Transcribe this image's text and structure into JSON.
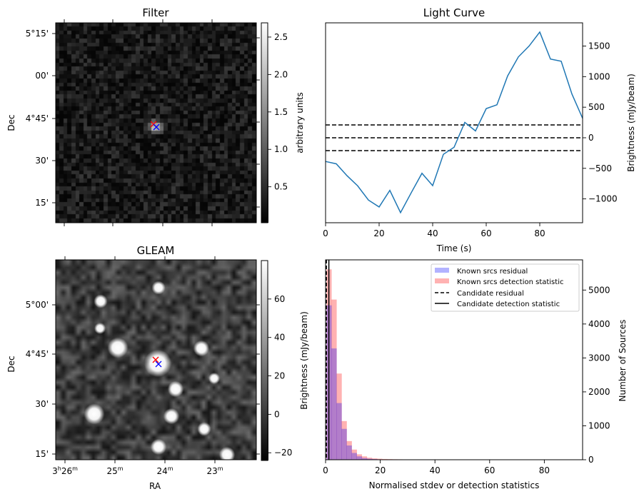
{
  "chart_data": [
    {
      "type": "heatmap",
      "title": "Filter",
      "ylabel": "Dec",
      "yticks": [
        "5°15'",
        "00'",
        "4°45'",
        "30'",
        "15'"
      ],
      "colorbar": {
        "label": "arbitrary units",
        "ticks": [
          "0.5",
          "1.0",
          "1.5",
          "2.0",
          "2.5"
        ],
        "range": [
          0.02,
          2.69
        ],
        "cmap": "gray"
      },
      "markers": [
        {
          "color": "#ff0000",
          "symbol": "x"
        },
        {
          "color": "#0000ff",
          "symbol": "x"
        }
      ]
    },
    {
      "type": "line",
      "title": "Light Curve",
      "xlabel": "Time (s)",
      "ylabel": "Brightness (mJy/beam)",
      "xlim": [
        0,
        96
      ],
      "ylim": [
        -1390,
        1880
      ],
      "xticks": [
        0,
        20,
        40,
        60,
        80
      ],
      "yticks": [
        -1000,
        -500,
        0,
        500,
        1000,
        1500
      ],
      "series": [
        {
          "name": "light curve",
          "color": "#1f77b4",
          "x": [
            0,
            4,
            8,
            12,
            16,
            20,
            24,
            28,
            32,
            36,
            40,
            44,
            48,
            52,
            56,
            60,
            64,
            68,
            72,
            76,
            80,
            84,
            88,
            92,
            96
          ],
          "y": [
            -388,
            -426,
            -620,
            -787,
            -1019,
            -1132,
            -860,
            -1225,
            -899,
            -581,
            -783,
            -271,
            -155,
            252,
            112,
            477,
            539,
            1012,
            1322,
            1500,
            1729,
            1287,
            1252,
            717,
            318
          ]
        }
      ],
      "hlines": [
        {
          "y": 210,
          "style": "dashed"
        },
        {
          "y": 0,
          "style": "dashed"
        },
        {
          "y": -210,
          "style": "dashed"
        }
      ]
    },
    {
      "type": "heatmap",
      "title": "GLEAM",
      "xlabel": "RA",
      "ylabel": "Dec",
      "xticks": [
        {
          "main": "3",
          "sup1": "h",
          "rest": "26",
          "sup2": "m"
        },
        {
          "main": "",
          "sup1": "",
          "rest": "25",
          "sup2": "m"
        },
        {
          "main": "",
          "sup1": "",
          "rest": "24",
          "sup2": "m"
        },
        {
          "main": "",
          "sup1": "",
          "rest": "23",
          "sup2": "m"
        }
      ],
      "yticks": [
        "5°00'",
        "4°45'",
        "30'",
        "15'"
      ],
      "colorbar": {
        "label": "Brightness (mJy/beam)",
        "ticks": [
          "60",
          "40",
          "20",
          "0",
          "−20"
        ],
        "range": [
          -24,
          80
        ],
        "cmap": "gray"
      },
      "markers": [
        {
          "color": "#ff0000",
          "symbol": "x"
        },
        {
          "color": "#0000ff",
          "symbol": "x"
        }
      ]
    },
    {
      "type": "bar",
      "subtype": "histogram",
      "xlabel": "Normalised stdev or detection statistics",
      "ylabel": "Number of Sources",
      "xlim": [
        0,
        94
      ],
      "ylim": [
        0,
        5890
      ],
      "xticks": [
        0,
        20,
        40,
        60,
        80
      ],
      "yticks": [
        0,
        1000,
        2000,
        3000,
        4000,
        5000
      ],
      "bin_width": 1.85,
      "series": [
        {
          "name": "Known srcs residual",
          "color": "#0000ff",
          "alpha": 0.3,
          "values": [
            4550,
            3280,
            1670,
            910,
            420,
            200,
            100,
            50,
            30,
            20,
            12,
            10,
            8,
            6,
            5,
            4,
            4,
            3,
            3,
            2,
            2,
            2,
            2,
            1
          ]
        },
        {
          "name": "Known srcs detection statistic",
          "color": "#ff0000",
          "alpha": 0.3,
          "values": [
            5610,
            4720,
            2540,
            1140,
            550,
            300,
            160,
            100,
            60,
            40,
            30,
            22,
            18,
            14,
            12,
            10,
            9,
            8,
            8,
            7,
            6,
            6,
            5,
            5,
            4,
            4,
            4,
            3,
            3,
            3,
            3,
            2,
            2,
            2,
            2,
            2,
            1,
            1,
            1,
            1,
            1,
            1,
            1,
            1,
            1,
            1,
            1,
            1
          ]
        }
      ],
      "vlines": [
        {
          "name": "Candidate residual",
          "x": 0.3,
          "style": "dashed"
        },
        {
          "name": "Candidate detection statistic",
          "x": 1.2,
          "style": "solid"
        }
      ],
      "legend": {
        "placement": "top-right",
        "entries": [
          "Known srcs residual",
          "Known srcs detection statistic",
          "Candidate residual",
          "Candidate detection statistic"
        ]
      }
    }
  ]
}
